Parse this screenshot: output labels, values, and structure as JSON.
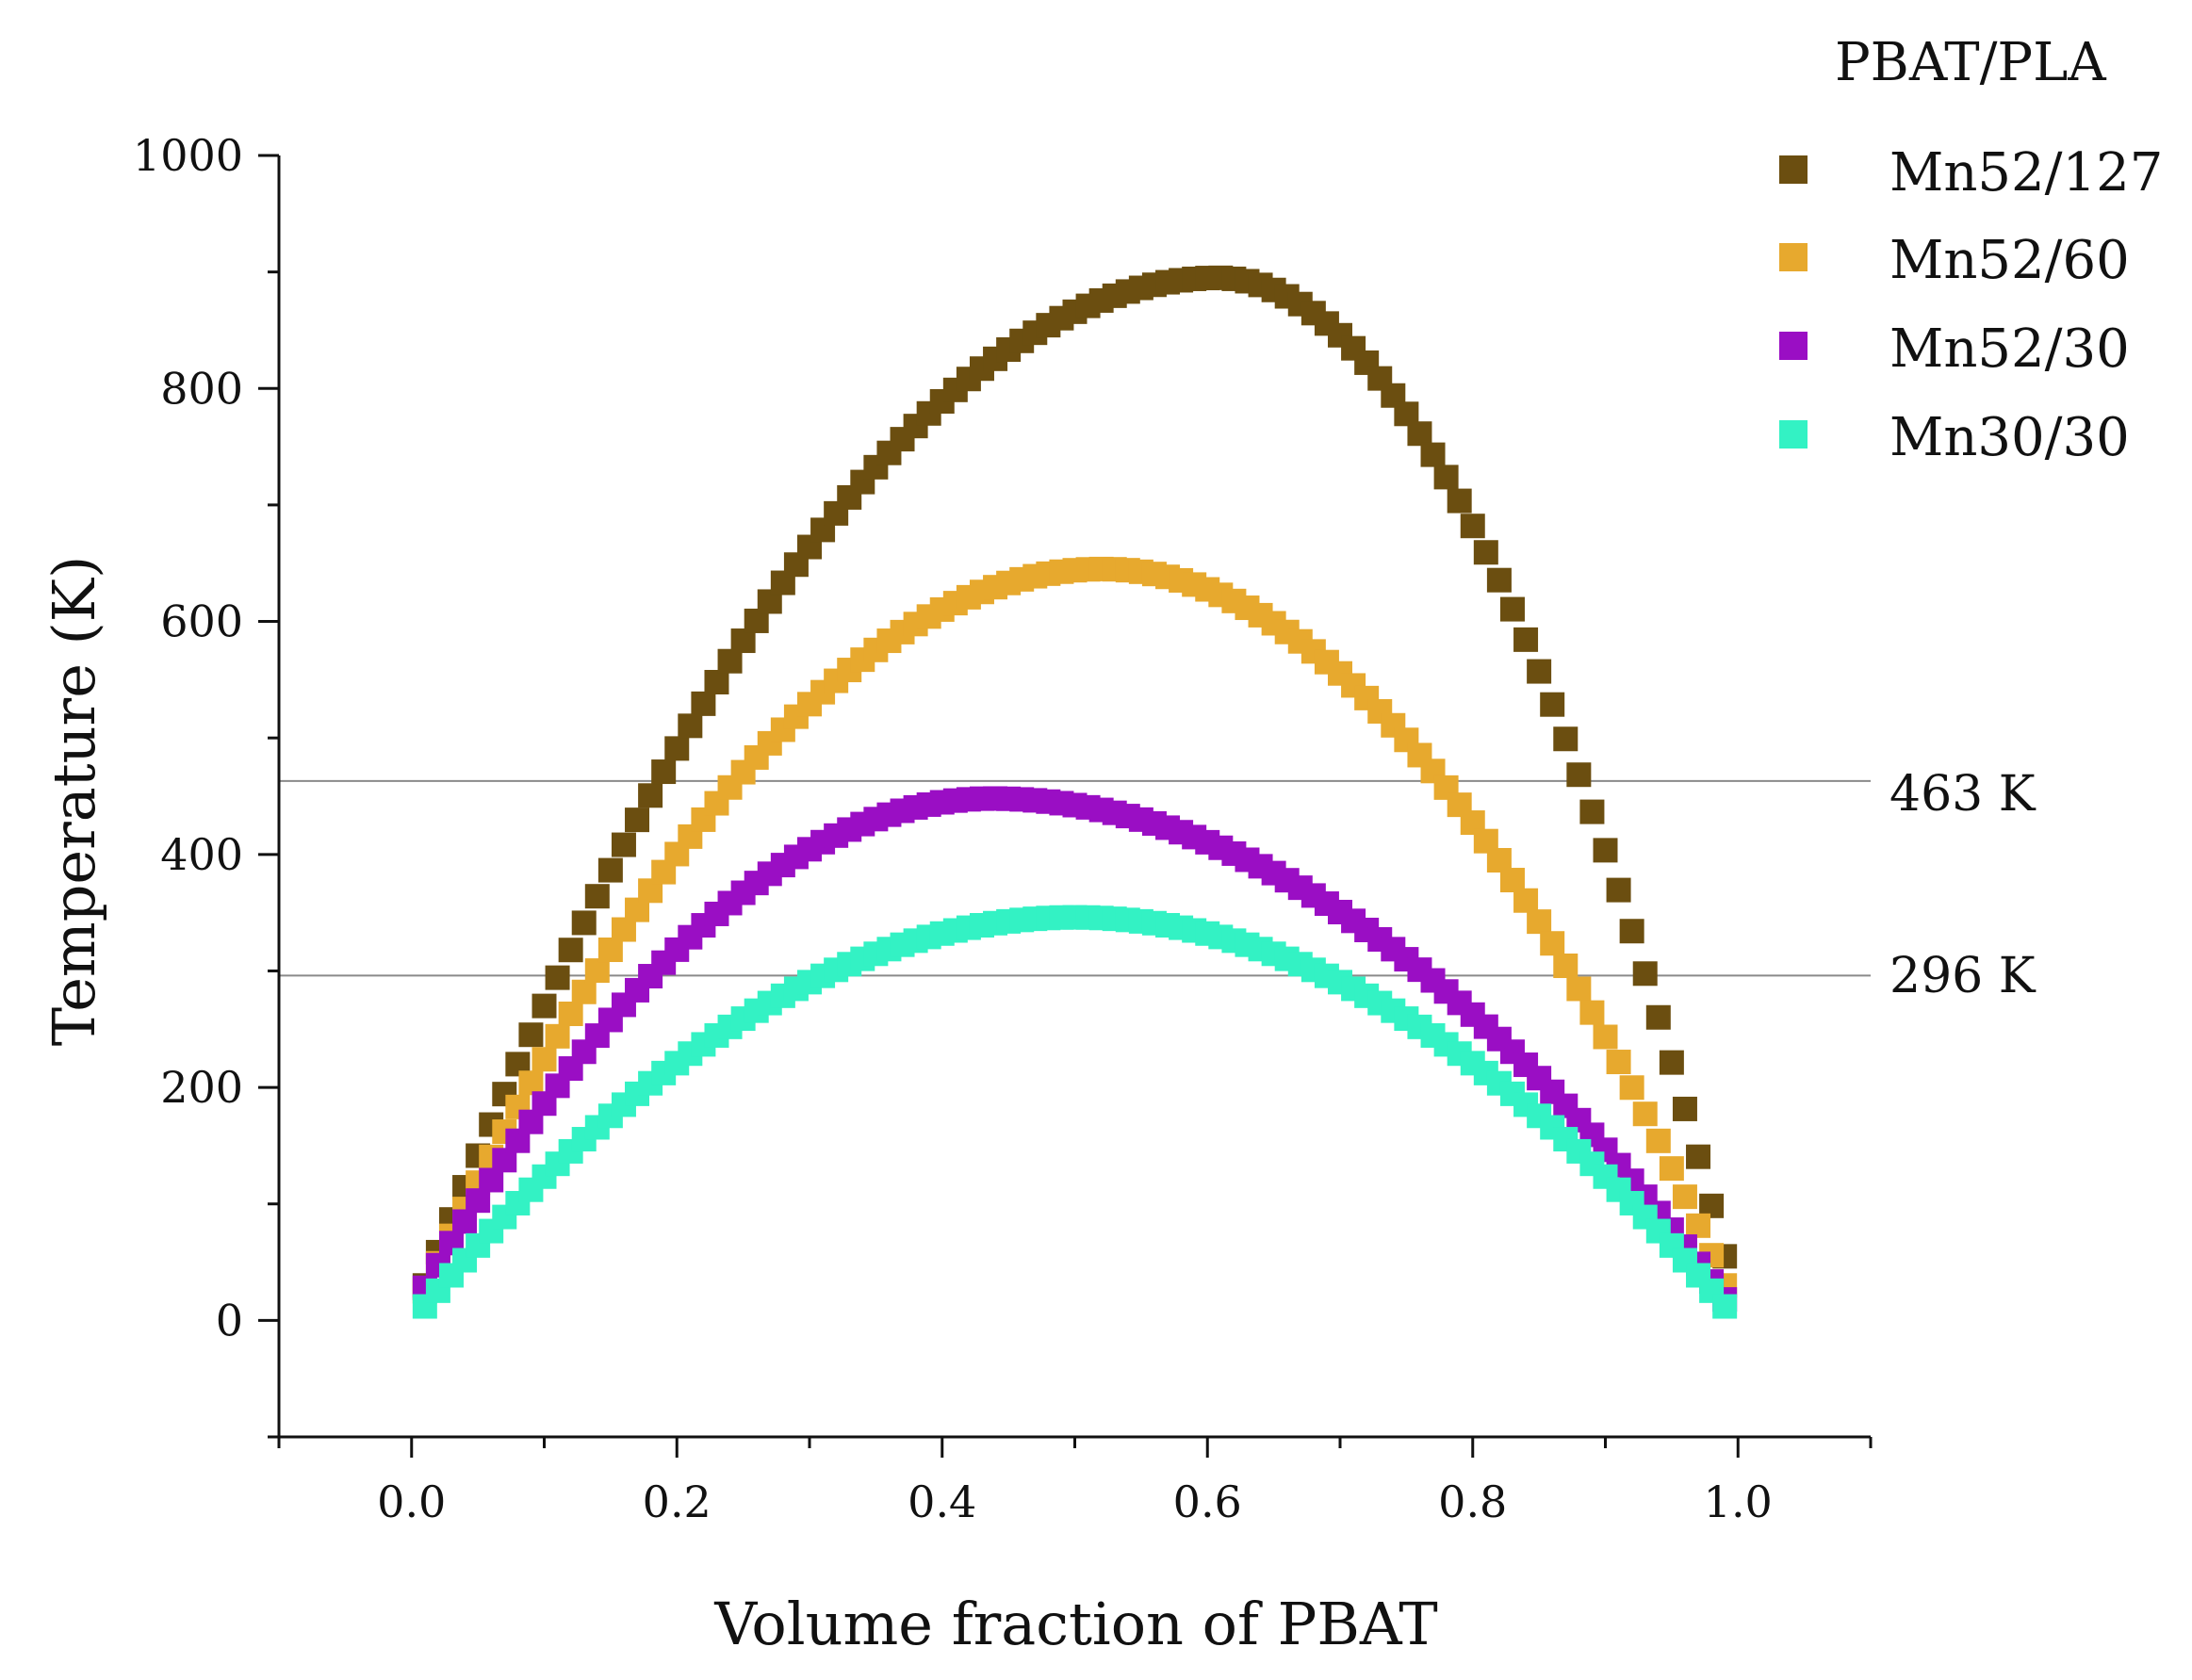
{
  "chart_data": {
    "type": "scatter",
    "title": "",
    "xlabel": "Volume fraction of PBAT",
    "ylabel": "Temperature (K)",
    "xlim": [
      -0.1,
      1.1
    ],
    "ylim": [
      -100,
      1000
    ],
    "xticks": [
      0.0,
      0.2,
      0.4,
      0.6,
      0.8,
      1.0
    ],
    "xtick_labels": [
      "0.0",
      "0.2",
      "0.4",
      "0.6",
      "0.8",
      "1.0"
    ],
    "yticks": [
      0,
      200,
      400,
      600,
      800,
      1000
    ],
    "ytick_labels": [
      "0",
      "200",
      "400",
      "600",
      "800",
      "1000"
    ],
    "grid": false,
    "legend_title": "PBAT/PLA",
    "legend_position": "top-right",
    "reference_lines": [
      {
        "y": 463,
        "label": "463 K"
      },
      {
        "y": 296,
        "label": "296 K"
      }
    ],
    "x_range": {
      "start": 0.01,
      "end": 0.99,
      "step": 0.01
    },
    "series": [
      {
        "name": "Mn52/127",
        "color": "#6b4e10",
        "marker": "square",
        "model": "Flory-Huggins binodal-like dome (values sampled every 0.01 from 0.01 to 0.99)",
        "peak_x": 0.605,
        "peak_y": 895,
        "end_values": [
          30,
          55
        ]
      },
      {
        "name": "Mn52/60",
        "color": "#e7a92e",
        "marker": "square",
        "peak_x": 0.52,
        "peak_y": 645,
        "end_values": [
          25,
          30
        ]
      },
      {
        "name": "Mn52/30",
        "color": "#9a0ec4",
        "marker": "square",
        "peak_x": 0.44,
        "peak_y": 448,
        "end_values": [
          28,
          18
        ]
      },
      {
        "name": "Mn30/30",
        "color": "#33f2c4",
        "marker": "square",
        "peak_x": 0.5,
        "peak_y": 346,
        "end_values": [
          12,
          12
        ]
      }
    ]
  }
}
